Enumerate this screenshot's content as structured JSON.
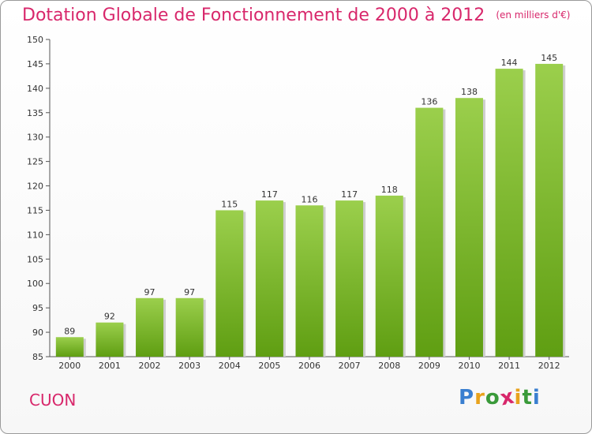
{
  "title": "Dotation Globale de Fonctionnement de 2000 à 2012",
  "subtitle": "(en milliers d'€)",
  "commune": "CUON",
  "logo": {
    "letters": [
      "P",
      "r",
      "o",
      "x",
      "i",
      "t",
      "i"
    ],
    "colors": [
      "#3a7fd0",
      "#e8a21c",
      "#3a9a3a",
      "#d8276b",
      "#e8a21c",
      "#3a9a3a",
      "#3a7fd0"
    ]
  },
  "colors": {
    "bar_top": "#9bcf4c",
    "bar_bottom": "#5f9e12",
    "accent": "#d8276b",
    "grid": "#dddddd"
  },
  "chart_data": {
    "type": "bar",
    "title": "Dotation Globale de Fonctionnement de 2000 à 2012",
    "subtitle": "(en milliers d'€)",
    "xlabel": "",
    "ylabel": "",
    "categories": [
      "2000",
      "2001",
      "2002",
      "2003",
      "2004",
      "2005",
      "2006",
      "2007",
      "2008",
      "2009",
      "2010",
      "2011",
      "2012"
    ],
    "values": [
      89,
      92,
      97,
      97,
      115,
      117,
      116,
      117,
      118,
      136,
      138,
      144,
      145
    ],
    "ylim": [
      85,
      150
    ],
    "yticks": [
      85,
      90,
      95,
      100,
      105,
      110,
      115,
      120,
      125,
      130,
      135,
      140,
      145,
      150
    ],
    "grid": false,
    "legend": "none"
  }
}
